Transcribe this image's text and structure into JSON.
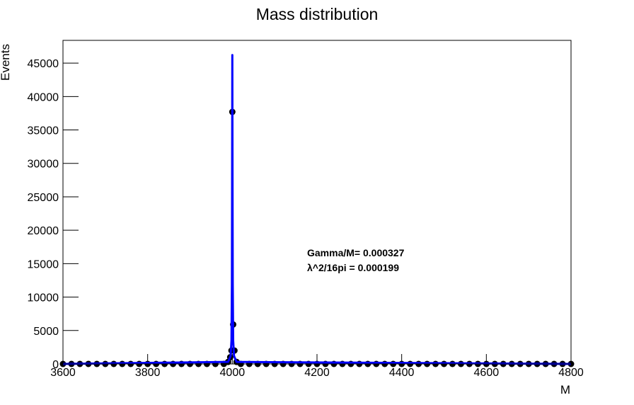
{
  "chart_data": {
    "type": "scatter",
    "title": "Mass distribution",
    "x_label": "M",
    "y_label": "Events",
    "annotations": [
      "Gamma/M= 0.000327",
      "λ^2/16pi = 0.000199"
    ],
    "xlim": [
      3600,
      4800
    ],
    "ylim": [
      0,
      48400
    ],
    "xticks": [
      3600,
      3800,
      4000,
      4200,
      4400,
      4600,
      4800
    ],
    "yticks": [
      0,
      5000,
      10000,
      15000,
      20000,
      25000,
      30000,
      35000,
      40000,
      45000
    ],
    "series": [
      {
        "type": "scatter",
        "color": "#000000",
        "x": [
          3600,
          3620,
          3640,
          3660,
          3680,
          3700,
          3720,
          3740,
          3760,
          3780,
          3800,
          3820,
          3840,
          3860,
          3880,
          3900,
          3920,
          3940,
          3960,
          3980,
          3990,
          3995,
          3998,
          4000,
          4002,
          4005,
          4010,
          4020,
          4040,
          4060,
          4080,
          4100,
          4120,
          4140,
          4160,
          4180,
          4200,
          4220,
          4240,
          4260,
          4280,
          4300,
          4320,
          4340,
          4360,
          4380,
          4400,
          4420,
          4440,
          4460,
          4480,
          4500,
          4520,
          4540,
          4560,
          4580,
          4600,
          4620,
          4640,
          4660,
          4680,
          4700,
          4720,
          4740,
          4760,
          4780,
          4800
        ],
        "values": [
          0,
          0,
          0,
          0,
          0,
          0,
          0,
          0,
          0,
          0,
          0,
          0,
          0,
          0,
          0,
          0,
          0,
          0,
          0,
          0,
          300,
          1000,
          2000,
          37700,
          5900,
          2000,
          300,
          0,
          0,
          0,
          0,
          0,
          0,
          0,
          0,
          0,
          0,
          0,
          0,
          0,
          0,
          0,
          0,
          0,
          0,
          0,
          0,
          0,
          0,
          0,
          0,
          0,
          0,
          0,
          0,
          0,
          0,
          0,
          0,
          0,
          0,
          0,
          0,
          0,
          0,
          0,
          0
        ]
      },
      {
        "type": "line",
        "color": "#0000ff",
        "x": [
          3600,
          3990,
          3996,
          3998,
          3999,
          3999.5,
          4000,
          4000.5,
          4001,
          4002,
          4004,
          4010,
          4800
        ],
        "values": [
          0,
          300,
          1200,
          3500,
          12000,
          26500,
          46200,
          26500,
          12000,
          3500,
          1200,
          300,
          0
        ]
      }
    ]
  }
}
